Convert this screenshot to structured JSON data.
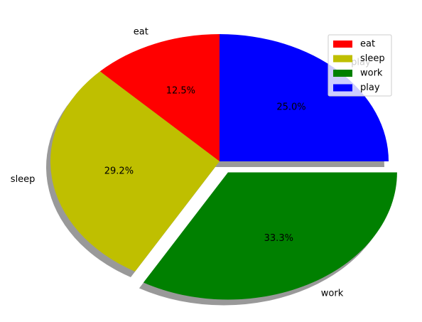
{
  "chart_data": {
    "type": "pie",
    "labels": [
      "eat",
      "sleep",
      "work",
      "play"
    ],
    "values": [
      3,
      7,
      8,
      6
    ],
    "percentages": [
      "12.5%",
      "29.2%",
      "33.3%",
      "25.0%"
    ],
    "colors": [
      "#ff0000",
      "#bfbf00",
      "#008000",
      "#0000ff"
    ],
    "explode": [
      0,
      0,
      0.1,
      0
    ],
    "shadow": true,
    "start_angle_deg": 90,
    "direction": "counterclockwise",
    "legend_position": "upper-right"
  },
  "legend": {
    "items": [
      {
        "label": "eat",
        "color": "#ff0000"
      },
      {
        "label": "sleep",
        "color": "#bfbf00"
      },
      {
        "label": "work",
        "color": "#008000"
      },
      {
        "label": "play",
        "color": "#0000ff"
      }
    ]
  }
}
